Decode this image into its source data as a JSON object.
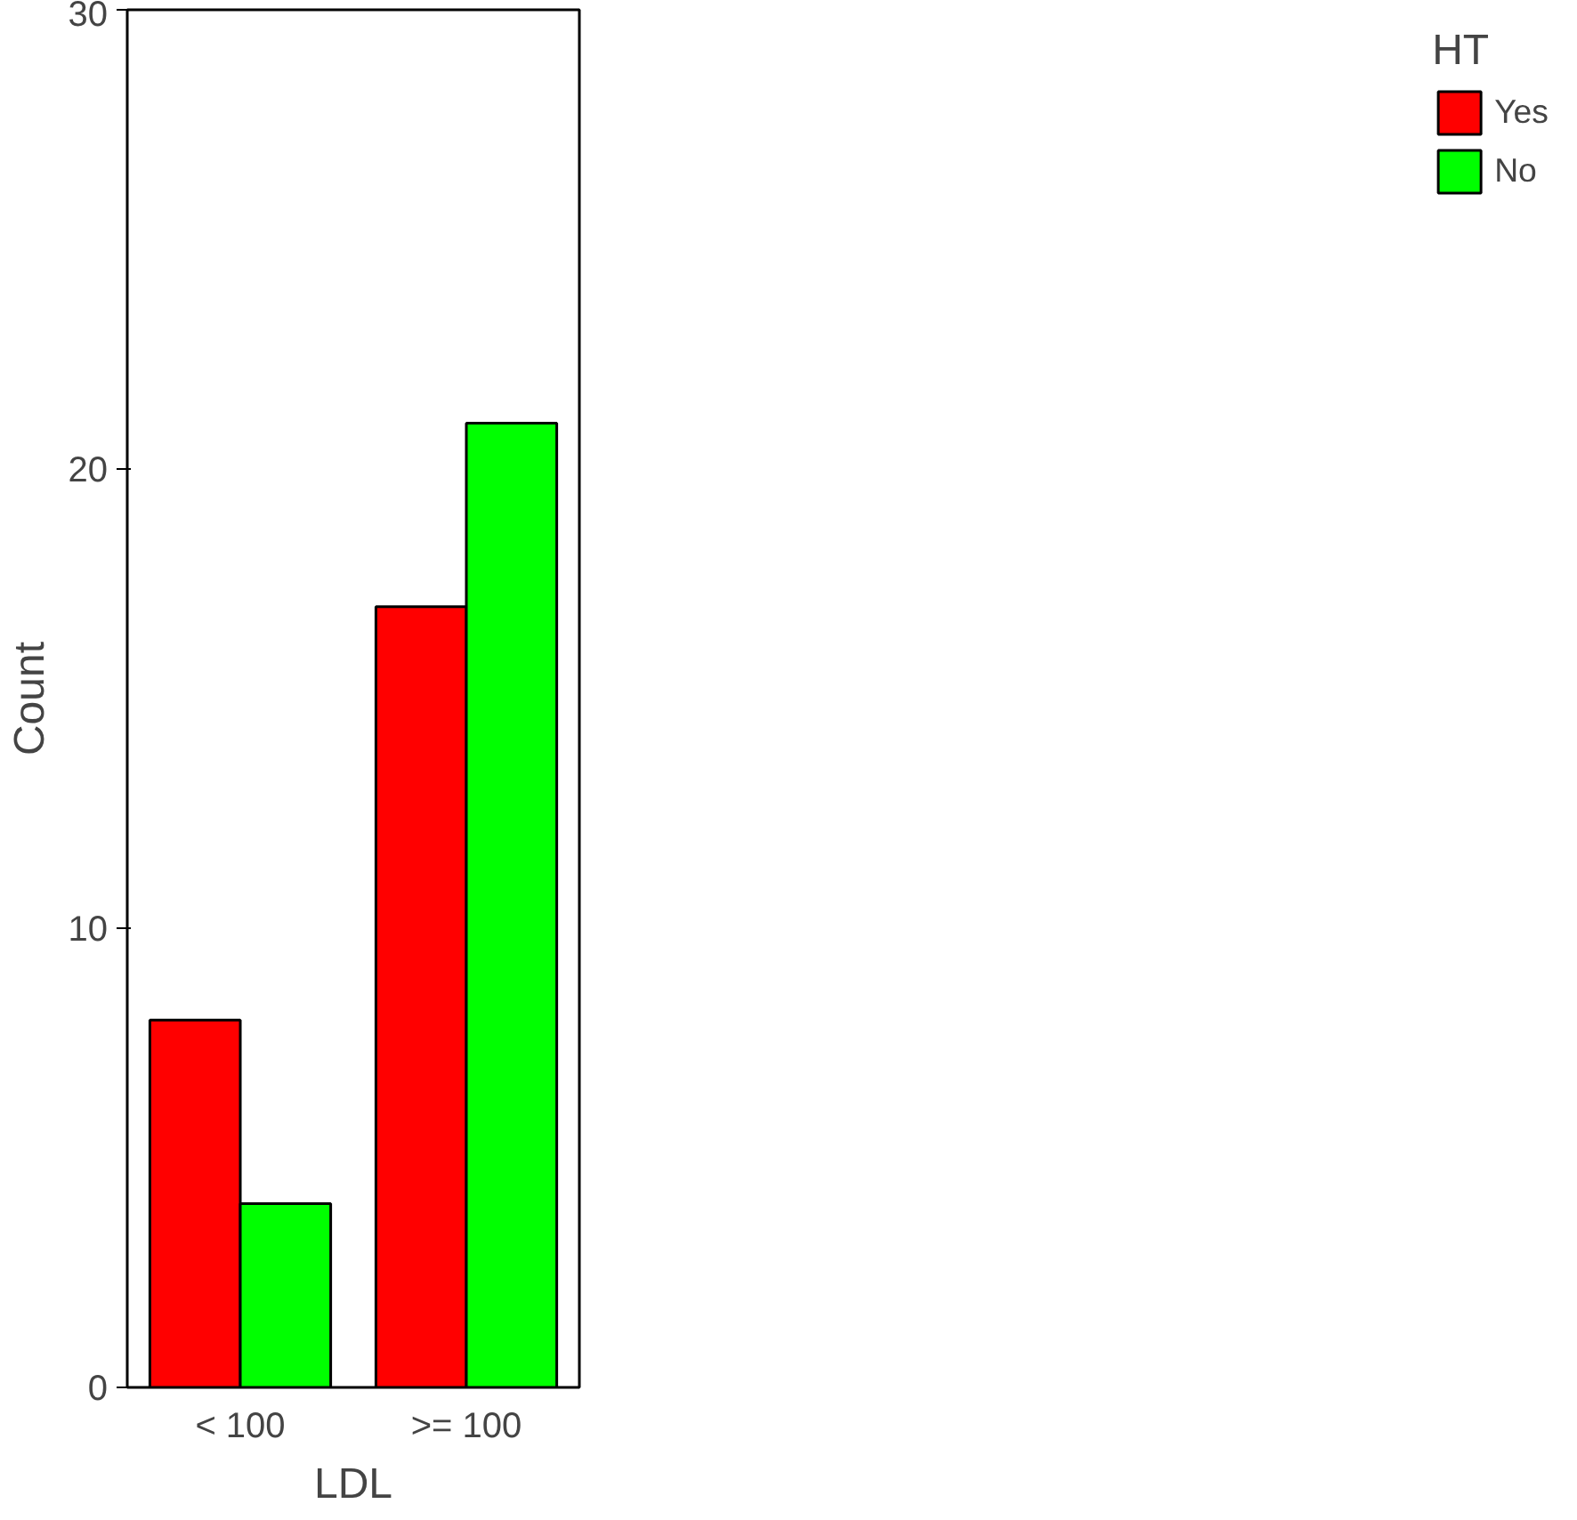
{
  "chart_data": {
    "type": "bar",
    "xlabel": "LDL",
    "ylabel": "Count",
    "legend_title": "HT",
    "categories": [
      "< 100",
      ">= 100"
    ],
    "series": [
      {
        "name": "Yes",
        "color": "#ff0000",
        "values": [
          8,
          17
        ]
      },
      {
        "name": "No",
        "color": "#00ff00",
        "values": [
          4,
          21
        ]
      }
    ],
    "ylim": [
      0,
      30
    ],
    "yticks": [
      0,
      10,
      20,
      30
    ],
    "grid": false,
    "legend": "right"
  }
}
